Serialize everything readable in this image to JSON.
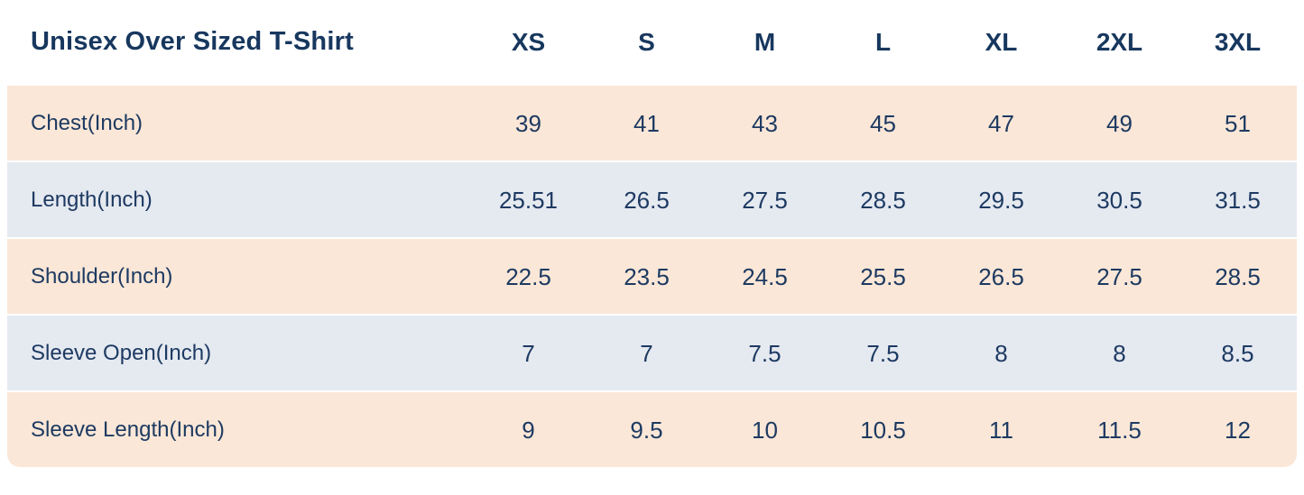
{
  "colors": {
    "text_navy": "#17375e",
    "value_navy": "#1d3a62",
    "row_peach": "#fbe7d7",
    "row_blue_gray": "#e5e9f0",
    "background": "#ffffff"
  },
  "chart_data": {
    "type": "table",
    "title": "Unisex Over Sized T-Shirt",
    "columns": [
      "XS",
      "S",
      "M",
      "L",
      "XL",
      "2XL",
      "3XL"
    ],
    "rows": [
      {
        "label": "Chest(Inch)",
        "values": [
          39,
          41,
          43,
          45,
          47,
          49,
          51
        ]
      },
      {
        "label": "Length(Inch)",
        "values": [
          25.51,
          26.5,
          27.5,
          28.5,
          29.5,
          30.5,
          31.5
        ]
      },
      {
        "label": "Shoulder(Inch)",
        "values": [
          22.5,
          23.5,
          24.5,
          25.5,
          26.5,
          27.5,
          28.5
        ]
      },
      {
        "label": "Sleeve Open(Inch)",
        "values": [
          7,
          7,
          7.5,
          7.5,
          8,
          8,
          8.5
        ]
      },
      {
        "label": "Sleeve Length(Inch)",
        "values": [
          9,
          9.5,
          10,
          10.5,
          11,
          11.5,
          12
        ]
      }
    ]
  }
}
